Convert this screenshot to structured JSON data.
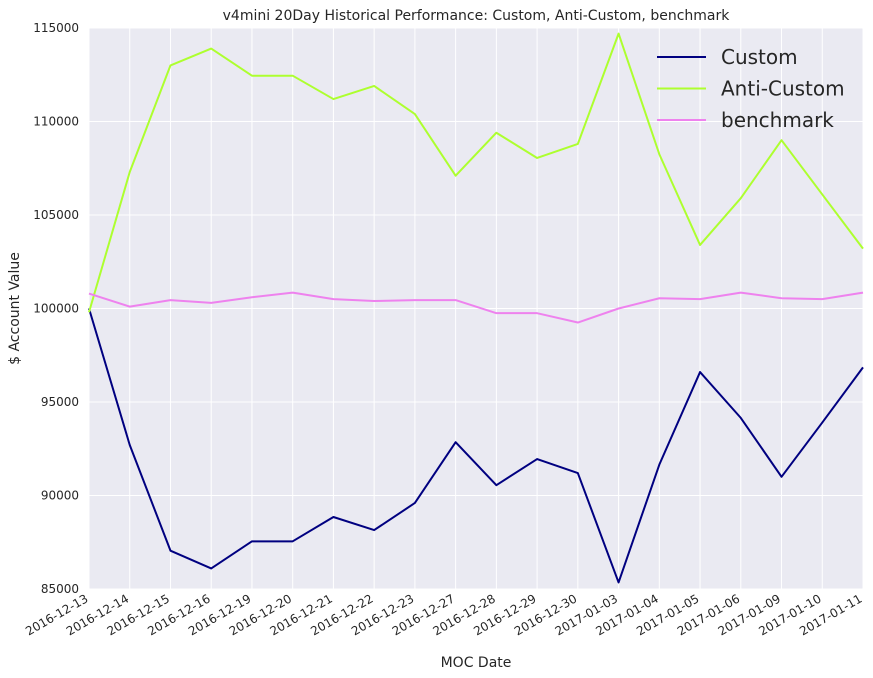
{
  "chart_data": {
    "type": "line",
    "title": "v4mini 20Day Historical Performance: Custom, Anti-Custom, benchmark",
    "xlabel": "MOC Date",
    "ylabel": "$ Account Value",
    "ylim": [
      85000,
      115000
    ],
    "yticks": [
      85000,
      90000,
      95000,
      100000,
      105000,
      110000,
      115000
    ],
    "grid": true,
    "legend": "top-right",
    "background": "#EAEAF2",
    "categories": [
      "2016-12-13",
      "2016-12-14",
      "2016-12-15",
      "2016-12-16",
      "2016-12-19",
      "2016-12-20",
      "2016-12-21",
      "2016-12-22",
      "2016-12-23",
      "2016-12-27",
      "2016-12-28",
      "2016-12-29",
      "2016-12-30",
      "2017-01-03",
      "2017-01-04",
      "2017-01-05",
      "2017-01-06",
      "2017-01-09",
      "2017-01-10",
      "2017-01-11"
    ],
    "series": [
      {
        "name": "Custom",
        "color": "#000080",
        "values": [
          100000,
          92700,
          87050,
          86100,
          87550,
          87550,
          88850,
          88150,
          89600,
          92850,
          90550,
          91950,
          91200,
          85350,
          91650,
          96600,
          94150,
          91000,
          93900,
          96850
        ]
      },
      {
        "name": "Anti-Custom",
        "color": "#ADFF2F",
        "values": [
          99800,
          107300,
          113000,
          113900,
          112450,
          112450,
          111200,
          111900,
          110400,
          107100,
          109400,
          108050,
          108800,
          114700,
          108250,
          103400,
          105900,
          109000,
          106100,
          103200
        ]
      },
      {
        "name": "benchmark",
        "color": "#EE82EE",
        "values": [
          100800,
          100100,
          100450,
          100300,
          100600,
          100850,
          100500,
          100400,
          100450,
          100450,
          99750,
          99750,
          99250,
          100000,
          100550,
          100500,
          100850,
          100550,
          100500,
          100850
        ]
      }
    ]
  }
}
